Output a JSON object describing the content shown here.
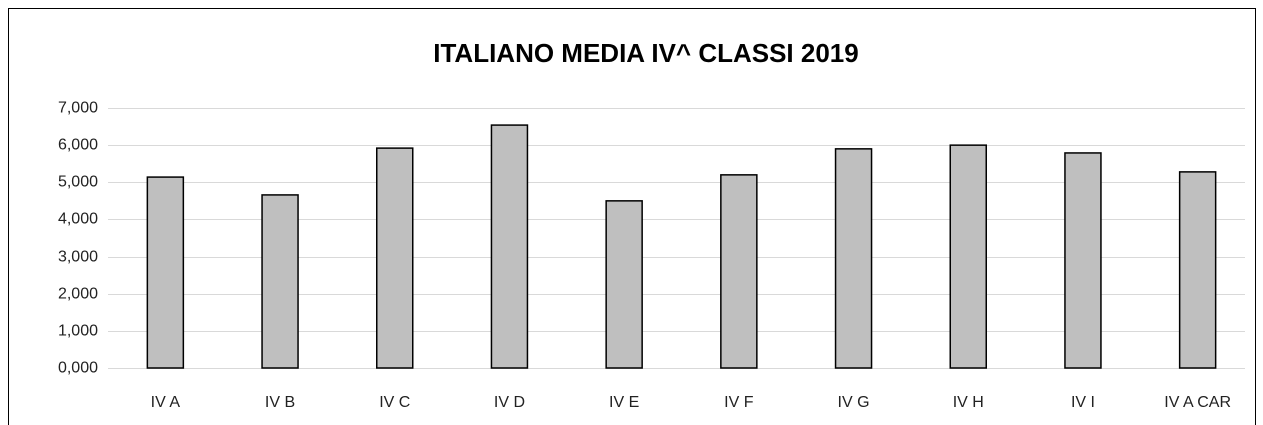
{
  "chart_data": {
    "type": "bar",
    "title": "ITALIANO MEDIA IV^ CLASSI 2019",
    "categories": [
      "IV A",
      "IV B",
      "IV C",
      "IV D",
      "IV E",
      "IV F",
      "IV G",
      "IV H",
      "IV I",
      "IV A CAR"
    ],
    "values": [
      5.14,
      4.66,
      5.92,
      6.54,
      4.5,
      5.2,
      5.9,
      6.0,
      5.79,
      5.28
    ],
    "color": "#bfbfbf",
    "ylim": [
      0,
      7
    ],
    "yticks": [
      {
        "value": 0,
        "label": "0,000"
      },
      {
        "value": 1,
        "label": "1,000"
      },
      {
        "value": 2,
        "label": "2,000"
      },
      {
        "value": 3,
        "label": "3,000"
      },
      {
        "value": 4,
        "label": "4,000"
      },
      {
        "value": 5,
        "label": "5,000"
      },
      {
        "value": 6,
        "label": "6,000"
      },
      {
        "value": 7,
        "label": "7,000"
      }
    ],
    "grid": true
  }
}
